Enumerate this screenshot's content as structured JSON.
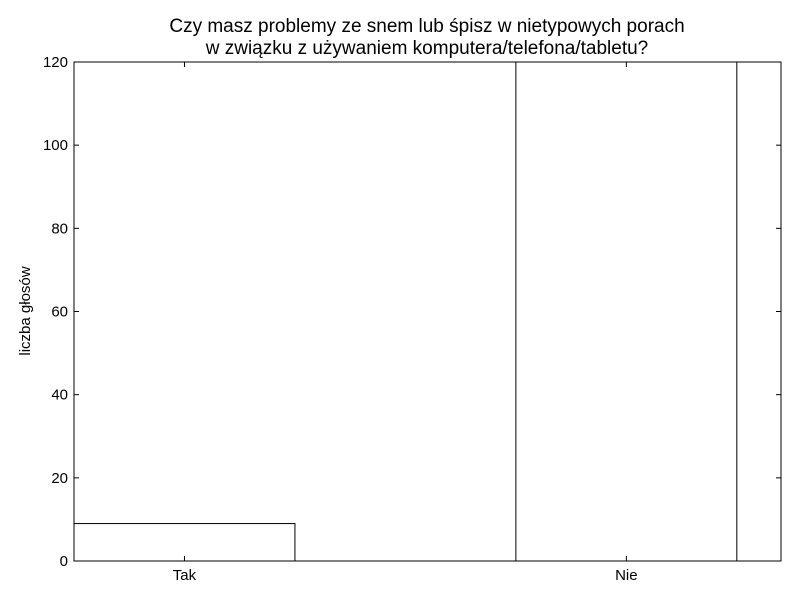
{
  "chart_data": {
    "type": "bar",
    "title_lines": [
      "Czy masz problemy ze snem lub śpisz w nietypowych porach",
      "w związku z używaniem komputera/telefona/tabletu?"
    ],
    "xlabel": "",
    "ylabel": "liczba głosów",
    "categories": [
      "Tak",
      "Nie"
    ],
    "values": [
      9,
      120
    ],
    "ylim": [
      0,
      120
    ],
    "yticks": [
      0,
      20,
      40,
      60,
      80,
      100,
      120
    ],
    "grid": false,
    "legend": "none",
    "colors": {
      "bar_fill": "#ffffff",
      "bar_stroke": "#000000",
      "axis": "#000000",
      "background": "#ffffff"
    }
  }
}
